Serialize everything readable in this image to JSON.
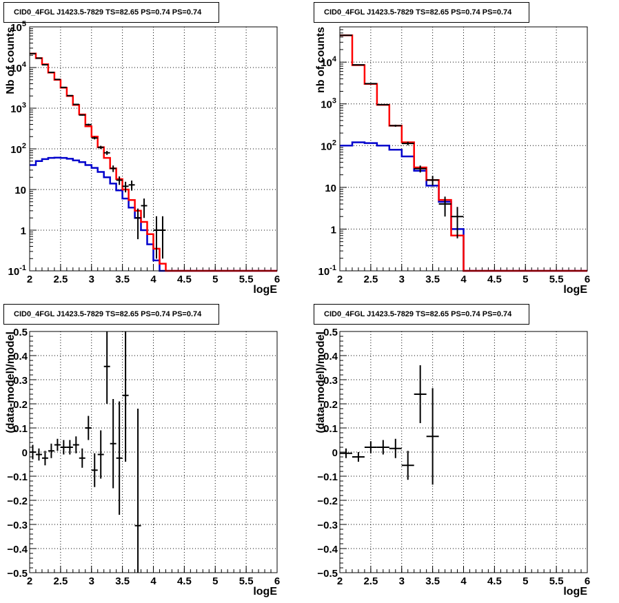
{
  "pad_title": "CID0_4FGL J1423.5-7829 TS=82.65 PS=0.74 PS=0.74",
  "colors": {
    "data": "#000000",
    "model_total": "#ff0000",
    "model_bkg": "#0000cc",
    "grid": "#000000"
  },
  "chart_data": [
    {
      "type": "line",
      "title": "CID0_4FGL J1423.5-7829 TS=82.65 PS=0.74 PS=0.74",
      "xlabel": "logE",
      "ylabel": "Nb of counts",
      "xlim": [
        2,
        6
      ],
      "ylim": [
        0.1,
        100000
      ],
      "yscale": "log",
      "grid": true,
      "xticks": [
        "2",
        "2.5",
        "3",
        "3.5",
        "4",
        "4.5",
        "5",
        "5.5",
        "6"
      ],
      "yticks": [
        "10^-1",
        "1",
        "10",
        "10^2",
        "10^3",
        "10^4",
        "10^5"
      ],
      "bin_edges": [
        2.0,
        2.1,
        2.2,
        2.3,
        2.4,
        2.5,
        2.6,
        2.7,
        2.8,
        2.9,
        3.0,
        3.1,
        3.2,
        3.3,
        3.4,
        3.5,
        3.6,
        3.7,
        3.8,
        3.9,
        4.0,
        4.1,
        4.2,
        4.3,
        4.4,
        4.5,
        4.6,
        4.7,
        4.8,
        4.9,
        5.0,
        5.1,
        5.2,
        5.3,
        5.4,
        5.5,
        5.6,
        5.7,
        5.8,
        5.9,
        6.0
      ],
      "series": [
        {
          "role": "model_bkg",
          "values": [
            40,
            50,
            56,
            60,
            61,
            60,
            57,
            52,
            47,
            40,
            34,
            27,
            20,
            14,
            9.5,
            6,
            3.6,
            2,
            1,
            0.45,
            0.18,
            0.1,
            0.1,
            0.1,
            0.1,
            0.1,
            0.1,
            0.1,
            0.1,
            0.1,
            0.1,
            0.1,
            0.1,
            0.1,
            0.1,
            0.1,
            0.1,
            0.1,
            0.1,
            0.1
          ]
        },
        {
          "role": "model_total",
          "values": [
            22000,
            17000,
            12000,
            7500,
            5000,
            3200,
            2000,
            1200,
            700,
            360,
            200,
            110,
            60,
            33,
            18,
            10,
            5.5,
            3,
            1.6,
            0.8,
            0.35,
            0.15,
            0.1,
            0.1,
            0.1,
            0.1,
            0.1,
            0.1,
            0.1,
            0.1,
            0.1,
            0.1,
            0.1,
            0.1,
            0.1,
            0.1,
            0.1,
            0.1,
            0.1,
            0.1
          ]
        }
      ],
      "points": [
        {
          "x": 2.05,
          "y": 22000,
          "lo": 21850,
          "hi": 22150
        },
        {
          "x": 2.15,
          "y": 17000,
          "lo": 16870,
          "hi": 17130
        },
        {
          "x": 2.25,
          "y": 11700,
          "lo": 11590,
          "hi": 11810
        },
        {
          "x": 2.35,
          "y": 7600,
          "lo": 7510,
          "hi": 7690
        },
        {
          "x": 2.45,
          "y": 5100,
          "lo": 5030,
          "hi": 5170
        },
        {
          "x": 2.55,
          "y": 3250,
          "lo": 3190,
          "hi": 3310
        },
        {
          "x": 2.65,
          "y": 2040,
          "lo": 1995,
          "hi": 2085
        },
        {
          "x": 2.75,
          "y": 1240,
          "lo": 1205,
          "hi": 1275
        },
        {
          "x": 2.85,
          "y": 680,
          "lo": 654,
          "hi": 706
        },
        {
          "x": 2.95,
          "y": 395,
          "lo": 375,
          "hi": 415
        },
        {
          "x": 3.05,
          "y": 185,
          "lo": 171,
          "hi": 199
        },
        {
          "x": 3.15,
          "y": 109,
          "lo": 99,
          "hi": 119
        },
        {
          "x": 3.25,
          "y": 80,
          "lo": 71,
          "hi": 89
        },
        {
          "x": 3.35,
          "y": 33,
          "lo": 27,
          "hi": 39
        },
        {
          "x": 3.45,
          "y": 17,
          "lo": 13,
          "hi": 21
        },
        {
          "x": 3.55,
          "y": 12,
          "lo": 8.5,
          "hi": 15.5
        },
        {
          "x": 3.65,
          "y": 13,
          "lo": 9.4,
          "hi": 16.6
        },
        {
          "x": 3.75,
          "y": 2,
          "lo": 0.6,
          "hi": 3.4
        },
        {
          "x": 3.85,
          "y": 4,
          "lo": 2,
          "hi": 6
        },
        {
          "x": 4.05,
          "y": 1,
          "lo": 0.2,
          "hi": 2.2
        },
        {
          "x": 4.15,
          "y": 1,
          "lo": 0.2,
          "hi": 2.2
        }
      ]
    },
    {
      "type": "line",
      "title": "CID0_4FGL J1423.5-7829 TS=82.65 PS=0.74 PS=0.74",
      "xlabel": "logE",
      "ylabel": "nb of counts",
      "xlim": [
        2,
        6
      ],
      "ylim": [
        0.1,
        70000
      ],
      "yscale": "log",
      "grid": true,
      "xticks": [
        "2",
        "2.5",
        "3",
        "3.5",
        "4",
        "4.5",
        "5",
        "5.5",
        "6"
      ],
      "yticks": [
        "10^-1",
        "1",
        "10",
        "10^2",
        "10^3",
        "10^4"
      ],
      "bin_edges": [
        2.0,
        2.2,
        2.4,
        2.6,
        2.8,
        3.0,
        3.2,
        3.4,
        3.6,
        3.8,
        4.0,
        4.2,
        4.4,
        4.6,
        4.8,
        5.0,
        5.2,
        5.4,
        5.6,
        5.8,
        6.0
      ],
      "series": [
        {
          "role": "model_bkg",
          "values": [
            100,
            120,
            115,
            100,
            80,
            55,
            25,
            11,
            4.5,
            1,
            0.1,
            0.1,
            0.1,
            0.1,
            0.1,
            0.1,
            0.1,
            0.1,
            0.1,
            0.1
          ]
        },
        {
          "role": "model_total",
          "values": [
            44000,
            8500,
            3000,
            950,
            300,
            120,
            30,
            15,
            5,
            0.7,
            0.1,
            0.1,
            0.1,
            0.1,
            0.1,
            0.1,
            0.1,
            0.1,
            0.1,
            0.1
          ]
        }
      ],
      "points": [
        {
          "x": 2.1,
          "y": 44000,
          "lo": 43790,
          "hi": 44210
        },
        {
          "x": 2.3,
          "y": 8600,
          "lo": 8507,
          "hi": 8693
        },
        {
          "x": 2.5,
          "y": 3050,
          "lo": 2995,
          "hi": 3105
        },
        {
          "x": 2.7,
          "y": 960,
          "lo": 929,
          "hi": 991
        },
        {
          "x": 2.9,
          "y": 300,
          "lo": 283,
          "hi": 317
        },
        {
          "x": 3.1,
          "y": 113,
          "lo": 102,
          "hi": 124
        },
        {
          "x": 3.3,
          "y": 28,
          "lo": 22.7,
          "hi": 33.3
        },
        {
          "x": 3.5,
          "y": 15,
          "lo": 11.1,
          "hi": 18.9
        },
        {
          "x": 3.7,
          "y": 4,
          "lo": 2,
          "hi": 6
        },
        {
          "x": 3.9,
          "y": 2,
          "lo": 0.6,
          "hi": 3.4
        }
      ]
    },
    {
      "type": "scatter",
      "title": "CID0_4FGL J1423.5-7829 TS=82.65 PS=0.74 PS=0.74",
      "xlabel": "logE",
      "ylabel": "(data-model)/model",
      "xlim": [
        2,
        6
      ],
      "ylim": [
        -0.5,
        0.5
      ],
      "grid": true,
      "xticks": [
        "2",
        "2.5",
        "3",
        "3.5",
        "4",
        "4.5",
        "5",
        "5.5",
        "6"
      ],
      "yticks": [
        "-0.5",
        "-0.4",
        "-0.3",
        "-0.2",
        "-0.1",
        "0",
        "0.1",
        "0.2",
        "0.3",
        "0.4",
        "0.5"
      ],
      "points": [
        {
          "x": 2.05,
          "y": 0.0,
          "lo": -0.03,
          "hi": 0.03
        },
        {
          "x": 2.15,
          "y": -0.01,
          "lo": -0.035,
          "hi": 0.015
        },
        {
          "x": 2.25,
          "y": -0.025,
          "lo": -0.055,
          "hi": 0.005
        },
        {
          "x": 2.35,
          "y": 0.005,
          "lo": -0.025,
          "hi": 0.035
        },
        {
          "x": 2.45,
          "y": 0.03,
          "lo": 0.005,
          "hi": 0.055
        },
        {
          "x": 2.55,
          "y": 0.02,
          "lo": -0.01,
          "hi": 0.05
        },
        {
          "x": 2.65,
          "y": 0.02,
          "lo": -0.01,
          "hi": 0.05
        },
        {
          "x": 2.75,
          "y": 0.03,
          "lo": -0.005,
          "hi": 0.065
        },
        {
          "x": 2.85,
          "y": -0.025,
          "lo": -0.065,
          "hi": 0.015
        },
        {
          "x": 2.95,
          "y": 0.1,
          "lo": 0.05,
          "hi": 0.15
        },
        {
          "x": 3.05,
          "y": -0.075,
          "lo": -0.145,
          "hi": -0.005
        },
        {
          "x": 3.15,
          "y": -0.01,
          "lo": -0.11,
          "hi": 0.09
        },
        {
          "x": 3.25,
          "y": 0.355,
          "lo": 0.2,
          "hi": 0.5
        },
        {
          "x": 3.35,
          "y": 0.035,
          "lo": -0.15,
          "hi": 0.22
        },
        {
          "x": 3.45,
          "y": -0.025,
          "lo": -0.26,
          "hi": 0.21
        },
        {
          "x": 3.55,
          "y": 0.235,
          "lo": -0.04,
          "hi": 0.5
        },
        {
          "x": 3.75,
          "y": -0.305,
          "lo": -0.5,
          "hi": 0.18
        }
      ]
    },
    {
      "type": "scatter",
      "title": "CID0_4FGL J1423.5-7829 TS=82.65 PS=0.74 PS=0.74",
      "xlabel": "logE",
      "ylabel": "(data-model)/model",
      "xlim": [
        2,
        6
      ],
      "ylim": [
        -0.5,
        0.5
      ],
      "grid": true,
      "xticks": [
        "2",
        "2.5",
        "3",
        "3.5",
        "4",
        "4.5",
        "5",
        "5.5",
        "6"
      ],
      "yticks": [
        "-0.5",
        "-0.4",
        "-0.3",
        "-0.2",
        "-0.1",
        "0",
        "0.1",
        "0.2",
        "0.3",
        "0.4",
        "0.5"
      ],
      "points": [
        {
          "x": 2.1,
          "y": -0.005,
          "lo": -0.025,
          "hi": 0.015
        },
        {
          "x": 2.3,
          "y": -0.02,
          "lo": -0.04,
          "hi": 0.0
        },
        {
          "x": 2.5,
          "y": 0.02,
          "lo": -0.005,
          "hi": 0.045
        },
        {
          "x": 2.7,
          "y": 0.02,
          "lo": -0.01,
          "hi": 0.05
        },
        {
          "x": 2.9,
          "y": 0.015,
          "lo": -0.025,
          "hi": 0.055
        },
        {
          "x": 3.1,
          "y": -0.055,
          "lo": -0.115,
          "hi": 0.005
        },
        {
          "x": 3.3,
          "y": 0.24,
          "lo": 0.12,
          "hi": 0.36
        },
        {
          "x": 3.5,
          "y": 0.065,
          "lo": -0.135,
          "hi": 0.265
        }
      ]
    }
  ]
}
